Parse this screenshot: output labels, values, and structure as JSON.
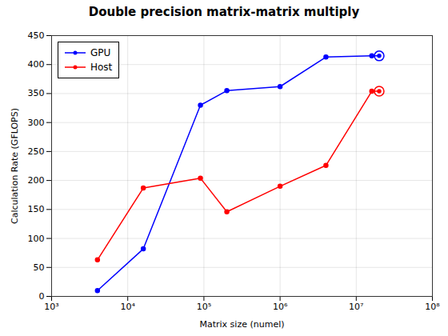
{
  "chart_data": {
    "type": "line",
    "title": "Double precision matrix-matrix multiply",
    "xlabel": "Matrix size (numel)",
    "ylabel": "Calculation Rate (GFLOPS)",
    "x": [
      4000,
      16000,
      90000,
      200000,
      1000000,
      4000000,
      16000000,
      20000000
    ],
    "series": [
      {
        "name": "GPU",
        "color": "#0000FF",
        "marker": "circle",
        "values": [
          10,
          82,
          330,
          355,
          362,
          413,
          415,
          415
        ]
      },
      {
        "name": "Host",
        "color": "#FF0000",
        "marker": "circle",
        "values": [
          63,
          187,
          204,
          146,
          190,
          226,
          354,
          354
        ]
      }
    ],
    "log": "x",
    "xlim": [
      1000,
      100000000
    ],
    "ylim": [
      0,
      450
    ],
    "xticks": [
      {
        "value": 1000,
        "label": "10³"
      },
      {
        "value": 10000,
        "label": "10⁴"
      },
      {
        "value": 100000,
        "label": "10⁵"
      },
      {
        "value": 1000000,
        "label": "10⁶"
      },
      {
        "value": 10000000,
        "label": "10⁷"
      },
      {
        "value": 100000000,
        "label": "10⁸"
      }
    ],
    "yticks": [
      0,
      50,
      100,
      150,
      200,
      250,
      300,
      350,
      400,
      450
    ],
    "grid": true,
    "legend": "upper left"
  }
}
